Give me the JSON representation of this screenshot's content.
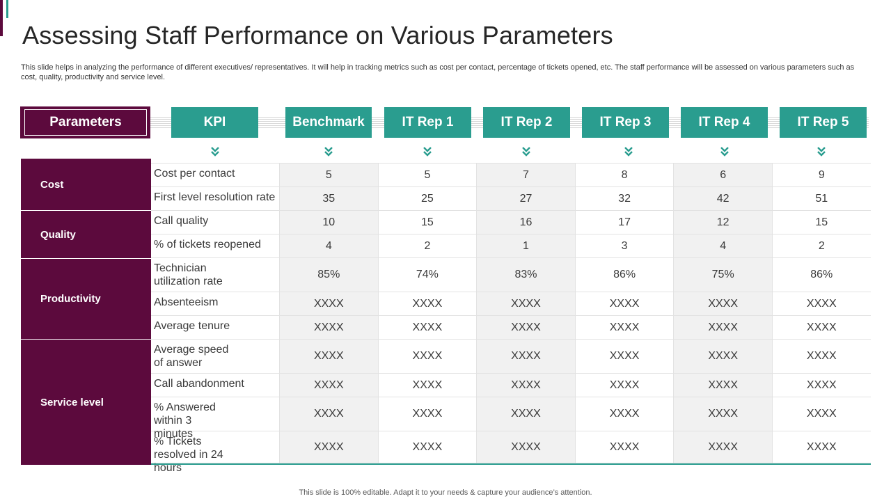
{
  "title": "Assessing Staff Performance on Various Parameters",
  "description": "This slide helps in analyzing the performance of different executives/ representatives. It will help in tracking metrics such as cost per contact, percentage of tickets opened, etc.  The staff performance will be assessed on various parameters such as cost, quality, productivity and service level.",
  "headers": {
    "parameters": "Parameters",
    "columns": [
      "KPI",
      "Benchmark",
      "IT Rep 1",
      "IT Rep 2",
      "IT Rep 3",
      "IT Rep 4",
      "IT Rep 5"
    ]
  },
  "groups": [
    "Cost",
    "Quality",
    "Productivity",
    "Service level"
  ],
  "rows": [
    {
      "kpi": "Cost per contact",
      "values": [
        "5",
        "5",
        "7",
        "8",
        "6",
        "9"
      ]
    },
    {
      "kpi": "First level resolution rate",
      "values": [
        "35",
        "25",
        "27",
        "32",
        "42",
        "51"
      ]
    },
    {
      "kpi": "Call quality",
      "values": [
        "10",
        "15",
        "16",
        "17",
        "12",
        "15"
      ]
    },
    {
      "kpi": "% of tickets reopened",
      "values": [
        "4",
        "2",
        "1",
        "3",
        "4",
        "2"
      ]
    },
    {
      "kpi": "Technician utilization rate",
      "values": [
        "85%",
        "74%",
        "83%",
        "86%",
        "75%",
        "86%"
      ]
    },
    {
      "kpi": "Absenteeism",
      "values": [
        "XXXX",
        "XXXX",
        "XXXX",
        "XXXX",
        "XXXX",
        "XXXX"
      ]
    },
    {
      "kpi": "Average tenure",
      "values": [
        "XXXX",
        "XXXX",
        "XXXX",
        "XXXX",
        "XXXX",
        "XXXX"
      ]
    },
    {
      "kpi": "Average speed of answer",
      "values": [
        "XXXX",
        "XXXX",
        "XXXX",
        "XXXX",
        "XXXX",
        "XXXX"
      ]
    },
    {
      "kpi": "Call abandonment",
      "values": [
        "XXXX",
        "XXXX",
        "XXXX",
        "XXXX",
        "XXXX",
        "XXXX"
      ]
    },
    {
      "kpi": "% Answered within 3 minutes",
      "values": [
        "XXXX",
        "XXXX",
        "XXXX",
        "XXXX",
        "XXXX",
        "XXXX"
      ]
    },
    {
      "kpi": "% Tickets resolved in 24 hours",
      "values": [
        "XXXX",
        "XXXX",
        "XXXX",
        "XXXX",
        "XXXX",
        "XXXX"
      ]
    }
  ],
  "footer": "This slide is 100% editable. Adapt it to your needs & capture your audience’s attention.",
  "colors": {
    "accent": "#5c0a3d",
    "teal": "#2a9d8f"
  }
}
